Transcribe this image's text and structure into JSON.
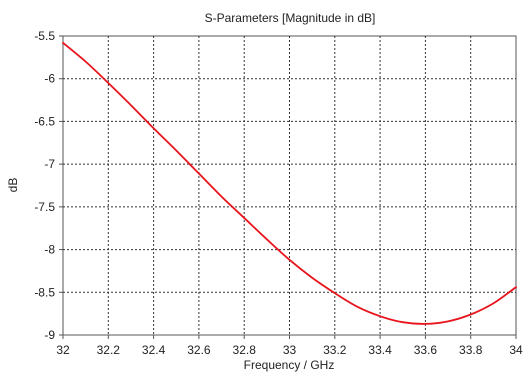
{
  "chart_data": {
    "type": "line",
    "title": "S-Parameters [Magnitude in dB]",
    "xlabel": "Frequency / GHz",
    "ylabel": "dB",
    "xlim": [
      32,
      34
    ],
    "ylim": [
      -9,
      -5.5
    ],
    "x_ticks": [
      32,
      32.2,
      32.4,
      32.6,
      32.8,
      33,
      33.2,
      33.4,
      33.6,
      33.8,
      34
    ],
    "x_tick_labels": [
      "32",
      "32.2",
      "32.4",
      "32.6",
      "32.8",
      "33",
      "33.2",
      "33.4",
      "33.6",
      "33.8",
      "34"
    ],
    "y_ticks": [
      -5.5,
      -6,
      -6.5,
      -7,
      -7.5,
      -8,
      -8.5,
      -9
    ],
    "y_tick_labels": [
      "-5.5",
      "-6",
      "-6.5",
      "-7",
      "-7.5",
      "-8",
      "-8.5",
      "-9"
    ],
    "grid": true,
    "series": [
      {
        "color": "#e8141c",
        "x": [
          32.0,
          32.1,
          32.2,
          32.3,
          32.4,
          32.5,
          32.6,
          32.7,
          32.8,
          32.9,
          33.0,
          33.1,
          33.2,
          33.3,
          33.4,
          33.5,
          33.6,
          33.7,
          33.8,
          33.9,
          34.0
        ],
        "y": [
          -5.58,
          -5.8,
          -6.05,
          -6.31,
          -6.58,
          -6.84,
          -7.11,
          -7.38,
          -7.63,
          -7.88,
          -8.12,
          -8.33,
          -8.51,
          -8.67,
          -8.78,
          -8.85,
          -8.87,
          -8.84,
          -8.76,
          -8.63,
          -8.44
        ]
      }
    ]
  }
}
